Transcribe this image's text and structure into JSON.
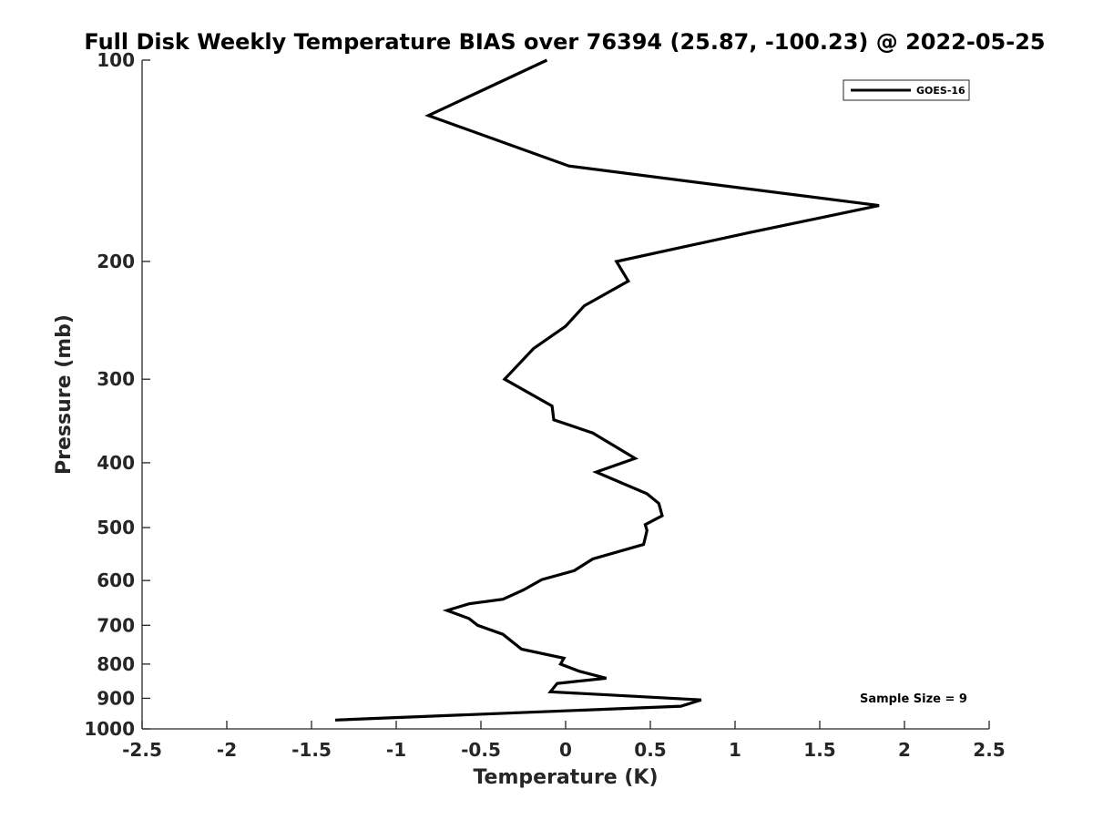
{
  "chart_data": {
    "type": "line",
    "title": "Full Disk Weekly Temperature BIAS over 76394 (25.87, -100.23) @ 2022-05-25",
    "xlabel": "Temperature (K)",
    "ylabel": "Pressure (mb)",
    "xlim": [
      -2.5,
      2.5
    ],
    "ylim": [
      100,
      1000
    ],
    "y_scale": "log",
    "y_reversed": true,
    "x_ticks": [
      "-2.5",
      "-2",
      "-1.5",
      "-1",
      "-0.5",
      "0",
      "0.5",
      "1",
      "1.5",
      "2",
      "2.5"
    ],
    "y_ticks": [
      "100",
      "200",
      "300",
      "400",
      "500",
      "600",
      "700",
      "800",
      "900",
      "1000"
    ],
    "grid": false,
    "legend_position": "top-right",
    "series": [
      {
        "name": "GOES-16",
        "color": "#000000",
        "x": [
          -0.11,
          -0.81,
          0.02,
          1.85,
          1.09,
          0.3,
          0.37,
          0.11,
          0.0,
          -0.19,
          -0.36,
          -0.08,
          -0.07,
          0.16,
          0.41,
          0.18,
          0.48,
          0.55,
          0.57,
          0.47,
          0.48,
          0.47,
          0.46,
          0.16,
          0.05,
          -0.14,
          -0.25,
          -0.37,
          -0.57,
          -0.7,
          -0.57,
          -0.52,
          -0.37,
          -0.26,
          -0.01,
          -0.03,
          0.08,
          0.24,
          -0.05,
          -0.09,
          0.8,
          0.68,
          -1.36
        ],
        "y": [
          100,
          121,
          144,
          165,
          181,
          200,
          214,
          233,
          250,
          270,
          300,
          329,
          345,
          361,
          394,
          413,
          445,
          460,
          480,
          495,
          505,
          518,
          530,
          557,
          580,
          598,
          620,
          640,
          650,
          665,
          684,
          700,
          722,
          760,
          784,
          800,
          820,
          840,
          855,
          880,
          905,
          925,
          970
        ]
      }
    ],
    "annotations": [
      "Sample Size = 9"
    ]
  }
}
